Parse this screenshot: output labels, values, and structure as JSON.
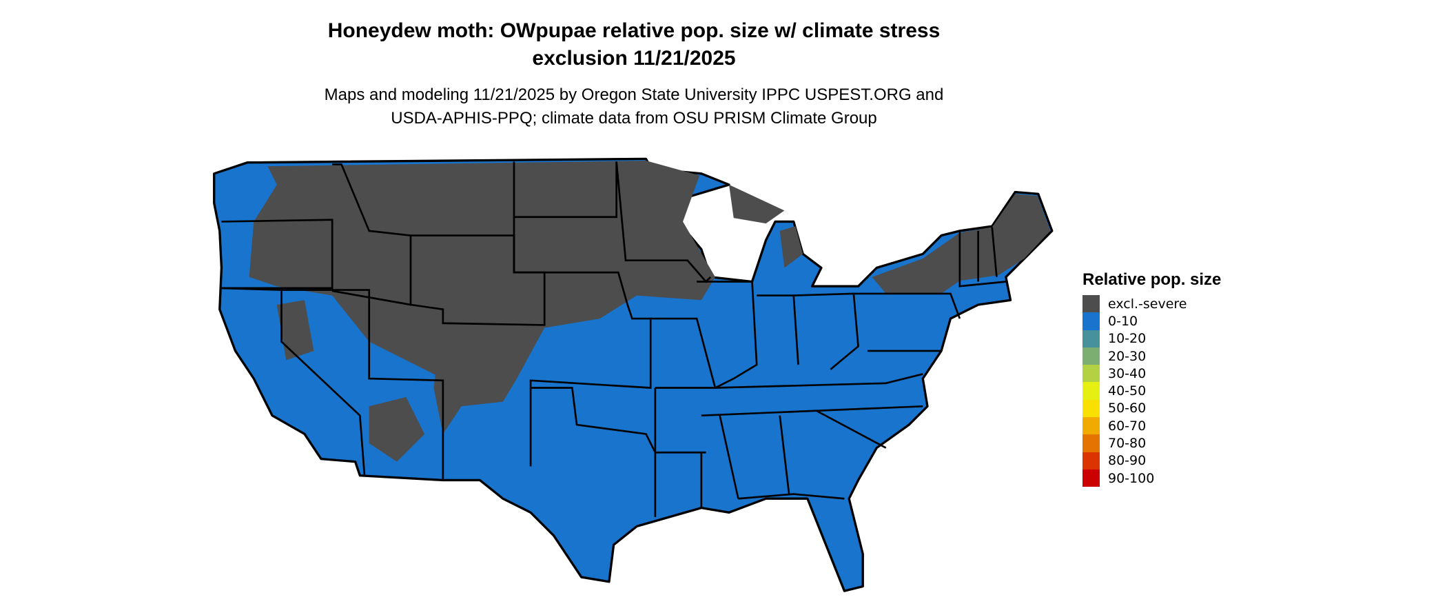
{
  "title_line1": "Honeydew moth: OWpupae relative pop. size w/ climate stress",
  "title_line2": "exclusion 11/21/2025",
  "subtitle_line1": "Maps and modeling 11/21/2025 by Oregon State University IPPC USPEST.ORG and",
  "subtitle_line2": "USDA-APHIS-PPQ; climate data from OSU PRISM Climate Group",
  "map": {
    "region": "Contiguous United States",
    "dominant_class": "0-10",
    "excluded_regions": "northern plains, northern Rockies, upper Midwest, northern New England, Colorado/Wyoming highlands"
  },
  "legend": {
    "title": "Relative pop. size",
    "items": [
      {
        "label": "excl.-severe",
        "color": "#4d4d4d"
      },
      {
        "label": "0-10",
        "color": "#1874cd"
      },
      {
        "label": "10-20",
        "color": "#48909c"
      },
      {
        "label": "20-30",
        "color": "#7cae72"
      },
      {
        "label": "30-40",
        "color": "#b2d143"
      },
      {
        "label": "40-50",
        "color": "#e5f012"
      },
      {
        "label": "50-60",
        "color": "#f8e100"
      },
      {
        "label": "60-70",
        "color": "#f0aa00"
      },
      {
        "label": "70-80",
        "color": "#e37400"
      },
      {
        "label": "80-90",
        "color": "#da3500"
      },
      {
        "label": "90-100",
        "color": "#cc0000"
      }
    ]
  }
}
